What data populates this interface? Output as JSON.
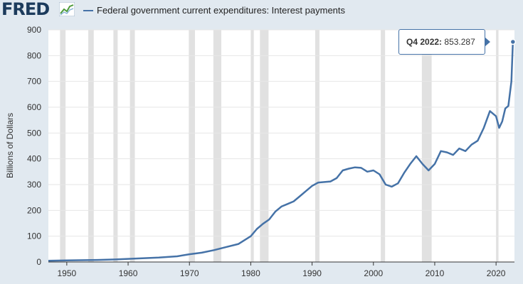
{
  "brand": {
    "logo_text": "FRED"
  },
  "legend": {
    "label": "Federal government current expenditures: Interest payments",
    "color": "#4572a7"
  },
  "tooltip": {
    "date": "Q4 2022:",
    "value": "853.287"
  },
  "chart_data": {
    "type": "line",
    "title": "",
    "xlabel": "",
    "ylabel": "Billions of Dollars",
    "xlim": [
      1947,
      2023
    ],
    "ylim": [
      0,
      900
    ],
    "grid": true,
    "legend_position": "top",
    "x_ticks": [
      1950,
      1960,
      1970,
      1980,
      1990,
      2000,
      2010,
      2020
    ],
    "y_ticks": [
      0,
      100,
      200,
      300,
      400,
      500,
      600,
      700,
      800,
      900
    ],
    "recessions": [
      [
        1948.9,
        1949.8
      ],
      [
        1953.5,
        1954.4
      ],
      [
        1957.6,
        1958.3
      ],
      [
        1960.3,
        1961.1
      ],
      [
        1969.9,
        1970.9
      ],
      [
        1973.9,
        1975.2
      ],
      [
        1980.0,
        1980.5
      ],
      [
        1981.5,
        1982.9
      ],
      [
        1990.5,
        1991.2
      ],
      [
        2001.2,
        2001.9
      ],
      [
        2007.9,
        2009.5
      ],
      [
        2020.0,
        2020.4
      ]
    ],
    "series": [
      {
        "name": "Federal government current expenditures: Interest payments",
        "color": "#4572a7",
        "x": [
          1947,
          1950,
          1955,
          1958,
          1960,
          1962,
          1965,
          1968,
          1970,
          1972,
          1974,
          1976,
          1978,
          1980,
          1981,
          1982,
          1983,
          1984,
          1985,
          1986,
          1987,
          1988,
          1989,
          1990,
          1991,
          1992,
          1993,
          1994,
          1995,
          1996,
          1997,
          1998,
          1999,
          2000,
          2001,
          2002,
          2003,
          2004,
          2005,
          2006,
          2007,
          2008,
          2009,
          2010,
          2011,
          2012,
          2013,
          2014,
          2015,
          2016,
          2017,
          2018,
          2019,
          2020,
          2020.5,
          2021,
          2021.5,
          2022,
          2022.5,
          2022.75
        ],
        "y": [
          5,
          6,
          8,
          10,
          12,
          14,
          17,
          22,
          30,
          36,
          46,
          58,
          70,
          100,
          128,
          148,
          165,
          195,
          215,
          225,
          235,
          255,
          275,
          295,
          308,
          310,
          312,
          325,
          355,
          362,
          367,
          365,
          350,
          355,
          340,
          300,
          292,
          305,
          345,
          380,
          410,
          380,
          355,
          380,
          430,
          425,
          415,
          440,
          430,
          455,
          470,
          520,
          585,
          565,
          520,
          545,
          595,
          605,
          700,
          853.287
        ]
      }
    ]
  }
}
